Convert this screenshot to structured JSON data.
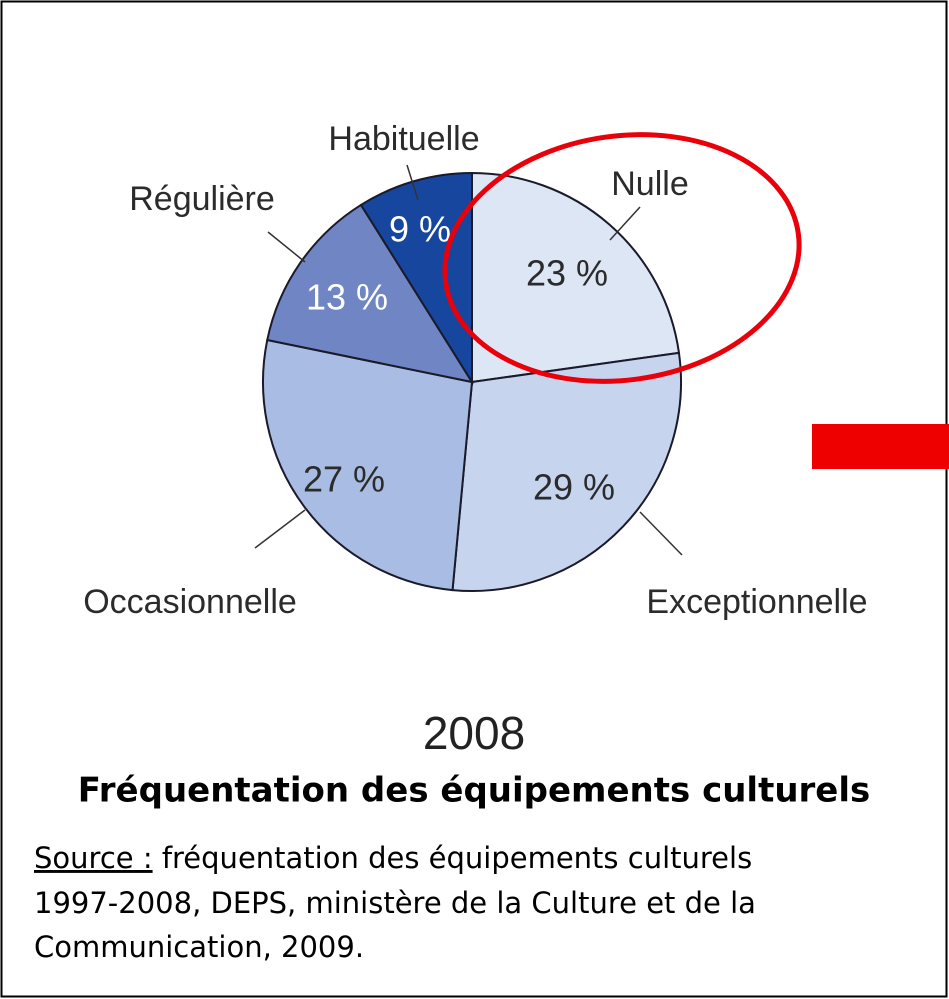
{
  "chart_data": {
    "type": "pie",
    "subtitle": "2008",
    "title": "Fréquentation des équipements culturels",
    "categories": [
      "Nulle",
      "Exceptionnelle",
      "Occasionnelle",
      "Régulière",
      "Habituelle"
    ],
    "values": [
      23,
      29,
      27,
      13,
      9
    ],
    "value_labels": [
      "23 %",
      "29 %",
      "27 %",
      "13 %",
      "9 %"
    ],
    "colors": [
      "#dde6f4",
      "#c7d4ee",
      "#a9bce3",
      "#6f85c4",
      "#16469e"
    ]
  },
  "source": {
    "label": "Source :",
    "lines": [
      "fréquentation des équipements culturels",
      "1997-2008, DEPS, ministère de la Culture et de la",
      "Communication, 2009."
    ]
  }
}
